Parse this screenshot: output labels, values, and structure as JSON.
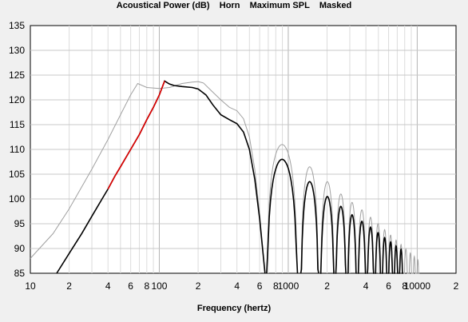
{
  "chart_data": {
    "type": "line",
    "title": "Acoustical Power (dB)    Horn    Maximum SPL    Masked",
    "xlabel": "Frequency (hertz)",
    "ylabel": "",
    "x_scale": "log",
    "xlim": [
      10,
      20000
    ],
    "ylim": [
      85,
      135
    ],
    "grid": true,
    "legend": "none",
    "x_ticks": [
      {
        "v": 10,
        "label": "10"
      },
      {
        "v": 20,
        "label": "2"
      },
      {
        "v": 40,
        "label": "4"
      },
      {
        "v": 60,
        "label": "6"
      },
      {
        "v": 80,
        "label": "8"
      },
      {
        "v": 100,
        "label": "100"
      },
      {
        "v": 200,
        "label": "2"
      },
      {
        "v": 400,
        "label": "4"
      },
      {
        "v": 600,
        "label": "6"
      },
      {
        "v": 800,
        "label": "8"
      },
      {
        "v": 1000,
        "label": "1000"
      },
      {
        "v": 2000,
        "label": "2"
      },
      {
        "v": 4000,
        "label": "4"
      },
      {
        "v": 6000,
        "label": "6"
      },
      {
        "v": 8000,
        "label": "8"
      },
      {
        "v": 10000,
        "label": "10000"
      },
      {
        "v": 20000,
        "label": "2"
      }
    ],
    "y_ticks": [
      85,
      90,
      95,
      100,
      105,
      110,
      115,
      120,
      125,
      130,
      135
    ],
    "colors": {
      "black": "#000000",
      "red": "#e00000",
      "gray": "#a0a0a0",
      "grid": "#c8c8c8",
      "background": "#ffffff"
    },
    "series": [
      {
        "color": "#000000",
        "points": [
          [
            16,
            85
          ],
          [
            20,
            89
          ],
          [
            25,
            93
          ],
          [
            30,
            96.5
          ],
          [
            36,
            100
          ],
          [
            40,
            102
          ],
          [
            45,
            104.5
          ],
          [
            50,
            106.5
          ],
          [
            60,
            110
          ],
          [
            70,
            113
          ],
          [
            80,
            116
          ],
          [
            90,
            118.5
          ],
          [
            100,
            121
          ],
          [
            110,
            123.8
          ],
          [
            120,
            123.2
          ],
          [
            130,
            122.9
          ],
          [
            150,
            122.7
          ],
          [
            180,
            122.5
          ],
          [
            200,
            122.2
          ],
          [
            230,
            121
          ],
          [
            260,
            119
          ],
          [
            300,
            117
          ],
          [
            350,
            116
          ],
          [
            400,
            115.2
          ],
          [
            450,
            113.5
          ],
          [
            500,
            110
          ],
          [
            550,
            104
          ],
          [
            600,
            96
          ],
          [
            660,
            85
          ]
        ]
      },
      {
        "color": "#e00000",
        "points": [
          [
            40,
            102
          ],
          [
            45,
            104.5
          ],
          [
            50,
            106.5
          ],
          [
            60,
            110
          ],
          [
            70,
            113
          ],
          [
            80,
            116
          ],
          [
            90,
            118.5
          ],
          [
            100,
            121
          ],
          [
            110,
            123.8
          ]
        ]
      },
      {
        "color": "#a0a0a0",
        "points": [
          [
            10,
            88
          ],
          [
            15,
            93
          ],
          [
            20,
            98
          ],
          [
            30,
            106
          ],
          [
            40,
            112
          ],
          [
            50,
            117
          ],
          [
            60,
            121
          ],
          [
            68,
            123.3
          ],
          [
            80,
            122.5
          ],
          [
            100,
            122.3
          ],
          [
            120,
            122.5
          ],
          [
            150,
            123.3
          ],
          [
            180,
            123.6
          ],
          [
            200,
            123.7
          ],
          [
            220,
            123.4
          ],
          [
            250,
            122
          ],
          [
            300,
            120
          ],
          [
            350,
            118.5
          ],
          [
            400,
            117.8
          ],
          [
            450,
            116.2
          ],
          [
            500,
            112.5
          ],
          [
            550,
            106
          ],
          [
            600,
            97
          ],
          [
            660,
            85
          ]
        ]
      }
    ],
    "lobes": [
      {
        "color": "#000000",
        "segments": [
          [
            680,
            1180,
            108
          ],
          [
            1250,
            1720,
            103.5
          ],
          [
            1770,
            2280,
            100.5
          ],
          [
            2320,
            2820,
            98.5
          ],
          [
            2870,
            3400,
            96.8
          ],
          [
            3450,
            4020,
            95.5
          ],
          [
            4070,
            4640,
            94.3
          ],
          [
            4690,
            5260,
            93.2
          ],
          [
            5310,
            5880,
            92.2
          ],
          [
            5930,
            6520,
            91.3
          ],
          [
            6570,
            7150,
            90.5
          ],
          [
            7200,
            7800,
            89.8
          ]
        ]
      },
      {
        "color": "#a0a0a0",
        "segments": [
          [
            680,
            1180,
            111
          ],
          [
            1250,
            1720,
            106.5
          ],
          [
            1770,
            2280,
            103.5
          ],
          [
            2320,
            2820,
            101
          ],
          [
            2870,
            3400,
            99.3
          ],
          [
            3450,
            4020,
            97.8
          ],
          [
            4070,
            4640,
            96.3
          ],
          [
            4690,
            5260,
            95
          ],
          [
            5310,
            5880,
            93.8
          ],
          [
            5930,
            6520,
            92.7
          ],
          [
            6570,
            7150,
            91.7
          ],
          [
            7200,
            7800,
            90.8
          ],
          [
            7850,
            8500,
            89.9
          ],
          [
            8550,
            9150,
            89.1
          ],
          [
            9200,
            9800,
            88.4
          ],
          [
            9850,
            10400,
            87.7
          ]
        ]
      }
    ]
  }
}
